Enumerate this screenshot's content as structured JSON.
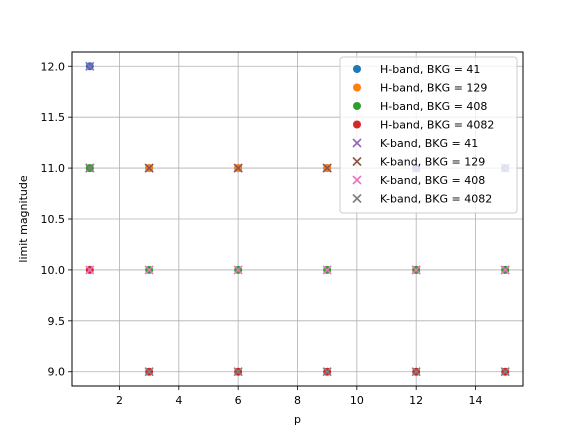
{
  "chart_data": {
    "type": "scatter",
    "xlabel": "p",
    "ylabel": "limit magnitude",
    "xlim": [
      0.4,
      15.6
    ],
    "ylim": [
      8.86,
      12.14
    ],
    "xticks": [
      "2",
      "4",
      "6",
      "8",
      "10",
      "12",
      "14"
    ],
    "yticks": [
      "9.0",
      "9.5",
      "10.0",
      "10.5",
      "11.0",
      "11.5",
      "12.0"
    ],
    "grid": true,
    "legend_position": "top-right",
    "series": [
      {
        "name": "H-band, BKG = 41",
        "marker": "circle",
        "color": "#1f77b4",
        "points": [
          [
            1,
            12.0
          ],
          [
            3,
            11.0
          ],
          [
            6,
            11.0
          ],
          [
            9,
            11.0
          ],
          [
            12,
            11.0
          ],
          [
            15,
            11.0
          ]
        ]
      },
      {
        "name": "H-band, BKG = 129",
        "marker": "circle",
        "color": "#ff7f0e",
        "points": [
          [
            1,
            11.0
          ],
          [
            3,
            11.0
          ],
          [
            6,
            11.0
          ],
          [
            9,
            11.0
          ],
          [
            12,
            10.0
          ],
          [
            15,
            10.0
          ]
        ]
      },
      {
        "name": "H-band, BKG = 408",
        "marker": "circle",
        "color": "#2ca02c",
        "points": [
          [
            1,
            11.0
          ],
          [
            3,
            10.0
          ],
          [
            6,
            10.0
          ],
          [
            9,
            10.0
          ],
          [
            12,
            10.0
          ],
          [
            15,
            10.0
          ]
        ]
      },
      {
        "name": "H-band, BKG = 4082",
        "marker": "circle",
        "color": "#d62728",
        "points": [
          [
            1,
            10.0
          ],
          [
            3,
            9.0
          ],
          [
            6,
            9.0
          ],
          [
            9,
            9.0
          ],
          [
            12,
            9.0
          ],
          [
            15,
            9.0
          ]
        ]
      },
      {
        "name": "K-band, BKG = 41",
        "marker": "x",
        "color": "#9467bd",
        "points": [
          [
            1,
            12.0
          ],
          [
            3,
            11.0
          ],
          [
            6,
            11.0
          ],
          [
            9,
            11.0
          ],
          [
            12,
            11.0
          ],
          [
            15,
            11.0
          ]
        ]
      },
      {
        "name": "K-band, BKG = 129",
        "marker": "x",
        "color": "#8c564b",
        "points": [
          [
            1,
            11.0
          ],
          [
            3,
            11.0
          ],
          [
            6,
            11.0
          ],
          [
            9,
            11.0
          ],
          [
            12,
            10.0
          ],
          [
            15,
            10.0
          ]
        ]
      },
      {
        "name": "K-band, BKG = 408",
        "marker": "x",
        "color": "#e377c2",
        "points": [
          [
            1,
            10.0
          ],
          [
            3,
            10.0
          ],
          [
            6,
            10.0
          ],
          [
            9,
            10.0
          ],
          [
            12,
            10.0
          ],
          [
            15,
            10.0
          ]
        ]
      },
      {
        "name": "K-band, BKG = 4082",
        "marker": "x",
        "color": "#7f7f7f",
        "points": [
          [
            1,
            11.0
          ],
          [
            3,
            9.0
          ],
          [
            6,
            9.0
          ],
          [
            9,
            9.0
          ],
          [
            12,
            9.0
          ],
          [
            15,
            9.0
          ]
        ]
      }
    ]
  }
}
